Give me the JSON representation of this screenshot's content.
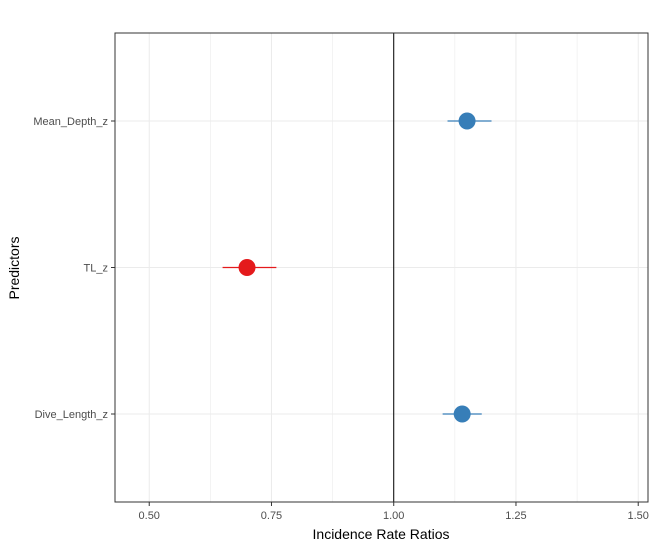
{
  "chart_data": {
    "type": "forest",
    "title": "",
    "xlabel": "Incidence Rate Ratios",
    "ylabel": "Predictors",
    "xlim": [
      0.43,
      1.52
    ],
    "x_ticks": [
      0.5,
      0.75,
      1.0,
      1.25,
      1.5
    ],
    "x_tick_labels": [
      "0.50",
      "0.75",
      "1.00",
      "1.25",
      "1.50"
    ],
    "reference_line": 1.0,
    "grid": true,
    "legend": "none",
    "colors": {
      "positive": "#377eb8",
      "negative": "#e41a1c",
      "reference": "#000000",
      "grid": "#ebebeb",
      "panel_border": "#333333"
    },
    "categories": [
      "Mean_Depth_z",
      "TL_z",
      "Dive_Length_z"
    ],
    "estimates": [
      {
        "predictor": "Mean_Depth_z",
        "value": 1.15,
        "ci_low": 1.11,
        "ci_high": 1.2,
        "direction": "positive"
      },
      {
        "predictor": "TL_z",
        "value": 0.7,
        "ci_low": 0.65,
        "ci_high": 0.76,
        "direction": "negative"
      },
      {
        "predictor": "Dive_Length_z",
        "value": 1.14,
        "ci_low": 1.1,
        "ci_high": 1.18,
        "direction": "positive"
      }
    ]
  }
}
